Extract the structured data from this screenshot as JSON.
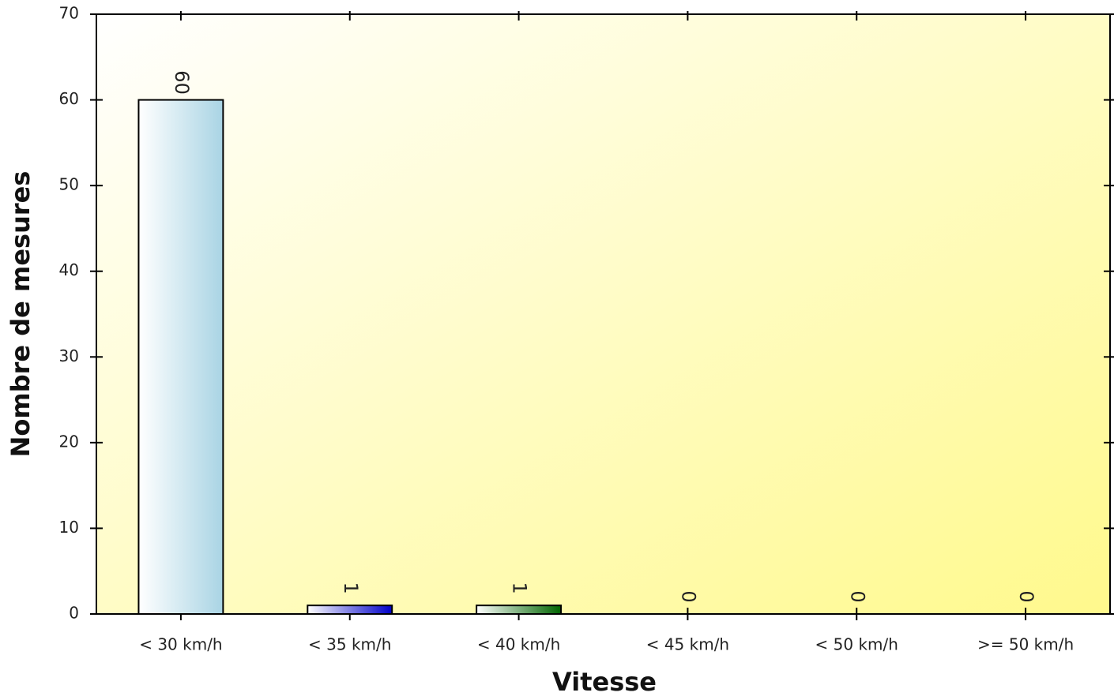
{
  "chart_data": {
    "type": "bar",
    "x_label": "Vitesse",
    "y_label": "Nombre de mesures",
    "categories": [
      "< 30 km/h",
      "< 35 km/h",
      "< 40 km/h",
      "< 45 km/h",
      "< 50 km/h",
      ">= 50 km/h"
    ],
    "values": [
      60,
      1,
      1,
      0,
      0,
      0
    ],
    "colors": [
      "#a9d4e4",
      "#0000c8",
      "#006400",
      "#ff8c00",
      "#c80000",
      "#800080"
    ],
    "ylim": [
      0,
      70
    ],
    "yticks": [
      0,
      10,
      20,
      30,
      40,
      50,
      60,
      70
    ],
    "grid": false
  }
}
